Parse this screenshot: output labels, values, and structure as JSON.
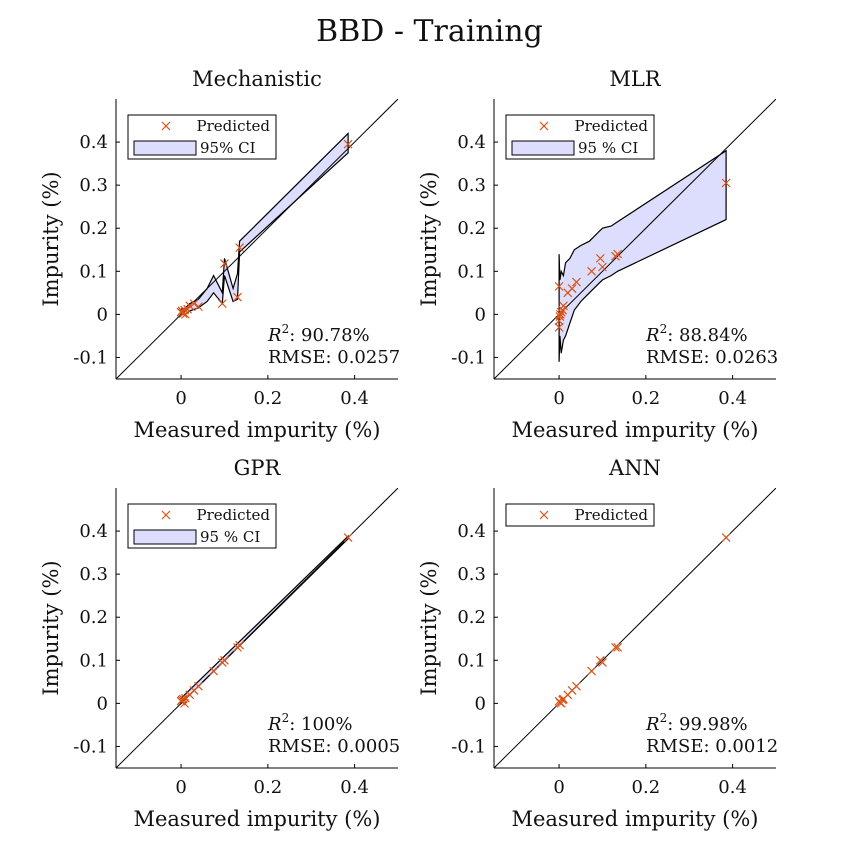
{
  "figure": {
    "title": "BBD - Training"
  },
  "colors": {
    "marker": "#d95319",
    "ci_fill": "#ddddfd",
    "axis": "#000000"
  },
  "chart_data": [
    {
      "type": "scatter",
      "title": "Mechanistic",
      "xlabel": "Measured impurity (%)",
      "ylabel": "Impurity (%)",
      "xlim": [
        -0.15,
        0.5
      ],
      "ylim": [
        -0.15,
        0.5
      ],
      "xticks": [
        0,
        0.2,
        0.4
      ],
      "xtick_labels": [
        "0",
        "0.2",
        "0.4"
      ],
      "yticks": [
        -0.1,
        0,
        0.1,
        0.2,
        0.3,
        0.4
      ],
      "ytick_labels": [
        "-0.1",
        "0",
        "0.1",
        "0.2",
        "0.3",
        "0.4"
      ],
      "legend": {
        "location": "top-left",
        "entries": [
          "Predicted",
          "95% CI"
        ]
      },
      "stats": {
        "r2_label": "R",
        "r2_value": ": 90.78%",
        "rmse": "RMSE: 0.0257"
      },
      "series": [
        {
          "name": "Predicted",
          "x": [
            0,
            0.002,
            0.005,
            0.008,
            0.01,
            0.015,
            0.02,
            0.03,
            0.04,
            0.095,
            0.1,
            0.13,
            0.135,
            0.385
          ],
          "y": [
            0.005,
            0.008,
            0.002,
            0.01,
            0.0,
            0.012,
            0.02,
            0.025,
            0.018,
            0.025,
            0.118,
            0.04,
            0.155,
            0.395
          ]
        }
      ],
      "ci": {
        "x": [
          0,
          0.01,
          0.02,
          0.04,
          0.06,
          0.075,
          0.095,
          0.1,
          0.12,
          0.13,
          0.135,
          0.385
        ],
        "upper": [
          0.012,
          0.015,
          0.025,
          0.035,
          0.06,
          0.09,
          0.05,
          0.13,
          0.06,
          0.095,
          0.17,
          0.42
        ],
        "lower": [
          0.0,
          0.0,
          0.008,
          0.015,
          0.03,
          0.05,
          0.025,
          0.09,
          0.03,
          0.035,
          0.145,
          0.375
        ]
      }
    },
    {
      "type": "scatter",
      "title": "MLR",
      "xlabel": "Measured impurity (%)",
      "ylabel": "Impurity (%)",
      "xlim": [
        -0.15,
        0.5
      ],
      "ylim": [
        -0.15,
        0.5
      ],
      "xticks": [
        0,
        0.2,
        0.4
      ],
      "xtick_labels": [
        "0",
        "0.2",
        "0.4"
      ],
      "yticks": [
        -0.1,
        0,
        0.1,
        0.2,
        0.3,
        0.4
      ],
      "ytick_labels": [
        "-0.1",
        "0",
        "0.1",
        "0.2",
        "0.3",
        "0.4"
      ],
      "legend": {
        "location": "top-left",
        "entries": [
          "Predicted",
          "95 % CI"
        ]
      },
      "stats": {
        "r2_label": "R",
        "r2_value": ": 88.84%",
        "rmse": "RMSE: 0.0263"
      },
      "series": [
        {
          "name": "Predicted",
          "x": [
            0,
            0,
            0,
            0.002,
            0.003,
            0.005,
            0.008,
            0.01,
            0.02,
            0.03,
            0.04,
            0.075,
            0.095,
            0.1,
            0.13,
            0.135,
            0.385
          ],
          "y": [
            0.065,
            -0.03,
            -0.015,
            -0.005,
            0.0,
            0.005,
            0.01,
            0.02,
            0.05,
            0.06,
            0.075,
            0.1,
            0.13,
            0.11,
            0.135,
            0.14,
            0.305
          ]
        }
      ],
      "ci": {
        "x": [
          0,
          0.002,
          0.005,
          0.01,
          0.015,
          0.025,
          0.035,
          0.05,
          0.07,
          0.09,
          0.1,
          0.12,
          0.135,
          0.385
        ],
        "upper": [
          0.14,
          0.08,
          0.1,
          0.09,
          0.12,
          0.13,
          0.15,
          0.16,
          0.17,
          0.19,
          0.2,
          0.205,
          0.215,
          0.38
        ],
        "lower": [
          -0.11,
          -0.05,
          -0.09,
          -0.06,
          -0.05,
          -0.02,
          0.01,
          0.03,
          0.05,
          0.07,
          0.08,
          0.09,
          0.1,
          0.22
        ]
      }
    },
    {
      "type": "scatter",
      "title": "GPR",
      "xlabel": "Measured impurity (%)",
      "ylabel": "Impurity (%)",
      "xlim": [
        -0.15,
        0.5
      ],
      "ylim": [
        -0.15,
        0.5
      ],
      "xticks": [
        0,
        0.2,
        0.4
      ],
      "xtick_labels": [
        "0",
        "0.2",
        "0.4"
      ],
      "yticks": [
        -0.1,
        0,
        0.1,
        0.2,
        0.3,
        0.4
      ],
      "ytick_labels": [
        "-0.1",
        "0",
        "0.1",
        "0.2",
        "0.3",
        "0.4"
      ],
      "legend": {
        "location": "top-left",
        "entries": [
          "Predicted",
          "95 % CI"
        ]
      },
      "stats": {
        "r2_label": "R",
        "r2_value": ": 100%",
        "rmse": "RMSE: 0.0005"
      },
      "series": [
        {
          "name": "Predicted",
          "x": [
            0,
            0.002,
            0.005,
            0.008,
            0.01,
            0.02,
            0.03,
            0.04,
            0.075,
            0.095,
            0.1,
            0.13,
            0.135,
            0.385
          ],
          "y": [
            0.005,
            0.008,
            0.01,
            0.0,
            0.012,
            0.02,
            0.03,
            0.04,
            0.075,
            0.095,
            0.1,
            0.13,
            0.135,
            0.385
          ]
        }
      ],
      "ci": {
        "x": [
          0,
          0.385
        ],
        "upper": [
          0.012,
          0.388
        ],
        "lower": [
          0.0,
          0.382
        ]
      }
    },
    {
      "type": "scatter",
      "title": "ANN",
      "xlabel": "Measured impurity (%)",
      "ylabel": "Impurity (%)",
      "xlim": [
        -0.15,
        0.5
      ],
      "ylim": [
        -0.15,
        0.5
      ],
      "xticks": [
        0,
        0.2,
        0.4
      ],
      "xtick_labels": [
        "0",
        "0.2",
        "0.4"
      ],
      "yticks": [
        -0.1,
        0,
        0.1,
        0.2,
        0.3,
        0.4
      ],
      "ytick_labels": [
        "-0.1",
        "0",
        "0.1",
        "0.2",
        "0.3",
        "0.4"
      ],
      "legend": {
        "location": "top-left",
        "entries": [
          "Predicted"
        ]
      },
      "stats": {
        "r2_label": "R",
        "r2_value": ": 99.98%",
        "rmse": "RMSE: 0.0012"
      },
      "series": [
        {
          "name": "Predicted",
          "x": [
            0,
            0.002,
            0.005,
            0.008,
            0.01,
            0.02,
            0.03,
            0.04,
            0.075,
            0.095,
            0.1,
            0.13,
            0.135,
            0.385
          ],
          "y": [
            0.005,
            0.002,
            0.0,
            0.008,
            0.01,
            0.02,
            0.03,
            0.04,
            0.075,
            0.1,
            0.095,
            0.13,
            0.13,
            0.385
          ]
        }
      ],
      "ci": null
    }
  ]
}
